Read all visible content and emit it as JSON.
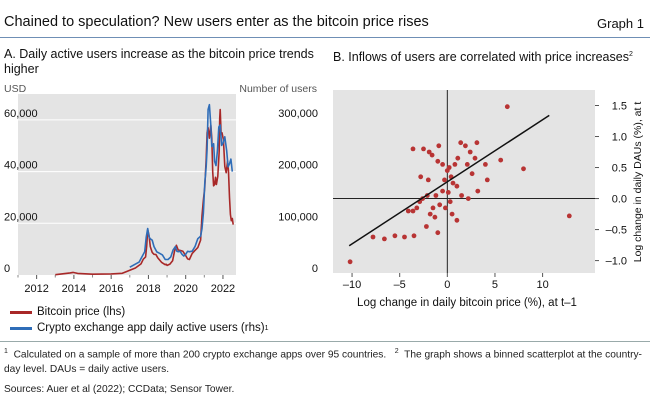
{
  "header": {
    "title": "Chained to speculation? New users enter as the bitcoin price rises",
    "graph_label": "Graph 1"
  },
  "panel_a": {
    "title": "A. Daily active users increase as the bitcoin price trends higher",
    "left_unit": "USD",
    "right_unit": "Number of users"
  },
  "panel_b": {
    "title": "B. Inflows of users are correlated with price increases",
    "title_sup": "2"
  },
  "legend": {
    "btc": "Bitcoin price (lhs)",
    "dau": "Crypto exchange app daily active users (rhs)",
    "dau_sup": "1"
  },
  "notes": {
    "n1_mark": "1",
    "n1": "Calculated on a sample of more than 200 crypto exchange apps over 95 countries.",
    "n2_mark": "2",
    "n2": "The graph shows a binned scatterplot at the country-day level. DAUs = daily active users.",
    "sources": "Sources: Auer et al (2022); CCData; Sensor Tower."
  },
  "colors": {
    "btc": "#a82828",
    "dau": "#2f6db8",
    "panel_bg": "#e4e4e4",
    "scatter": "#b83434",
    "fit": "#111111"
  },
  "chart_data": [
    {
      "type": "line",
      "title": "A. Daily active users increase as the bitcoin price trends higher",
      "x_ticks": [
        "2012",
        "2014",
        "2016",
        "2018",
        "2020",
        "2022"
      ],
      "x_range": [
        2011,
        2022.7
      ],
      "y_left": {
        "label": "USD",
        "ticks": [
          "0",
          "20,000",
          "40,000",
          "60,000"
        ],
        "range": [
          0,
          70000
        ]
      },
      "y_right": {
        "label": "Number of users",
        "ticks": [
          "0",
          "100,000",
          "200,000",
          "300,000"
        ],
        "range": [
          0,
          350000
        ]
      },
      "series": [
        {
          "name": "Bitcoin price (lhs)",
          "axis": "left",
          "x": [
            2013.0,
            2013.8,
            2013.95,
            2014.2,
            2015.0,
            2016.0,
            2016.6,
            2017.3,
            2017.6,
            2017.85,
            2017.96,
            2018.1,
            2018.3,
            2018.5,
            2018.9,
            2019.0,
            2019.3,
            2019.5,
            2019.7,
            2020.0,
            2020.2,
            2020.5,
            2020.8,
            2020.95,
            2021.1,
            2021.2,
            2021.35,
            2021.45,
            2021.55,
            2021.65,
            2021.8,
            2021.85,
            2021.95,
            2022.1,
            2022.25,
            2022.35,
            2022.45,
            2022.55
          ],
          "values": [
            100,
            800,
            1000,
            600,
            300,
            430,
            650,
            2700,
            4300,
            7000,
            17500,
            11000,
            8000,
            6700,
            4000,
            3700,
            5500,
            11500,
            9500,
            7500,
            6000,
            9500,
            13500,
            29000,
            45000,
            57000,
            58000,
            40000,
            35000,
            35000,
            48000,
            64000,
            55000,
            42000,
            44000,
            30000,
            21000,
            19500
          ]
        },
        {
          "name": "Crypto exchange app daily active users (rhs)",
          "axis": "right",
          "x": [
            2017.0,
            2017.5,
            2017.8,
            2017.96,
            2018.1,
            2018.3,
            2018.6,
            2018.9,
            2019.2,
            2019.45,
            2019.6,
            2019.8,
            2020.0,
            2020.2,
            2020.5,
            2020.8,
            2020.95,
            2021.1,
            2021.2,
            2021.35,
            2021.45,
            2021.55,
            2021.7,
            2021.85,
            2022.0,
            2022.2,
            2022.35,
            2022.5
          ],
          "values": [
            15000,
            25000,
            45000,
            90000,
            70000,
            55000,
            42000,
            30000,
            35000,
            55000,
            45000,
            40000,
            40000,
            45000,
            55000,
            75000,
            120000,
            210000,
            320000,
            290000,
            250000,
            220000,
            240000,
            290000,
            255000,
            240000,
            215000,
            200000
          ]
        }
      ]
    },
    {
      "type": "scatter",
      "title": "B. Inflows of users are correlated with price increases",
      "xlabel": "Log change in daily bitcoin price (%), at t–1",
      "ylabel": "Log change in daily DAUs (%), at t",
      "x_ticks": [
        "–10",
        "–5",
        "0",
        "5",
        "10"
      ],
      "y_ticks": [
        "–1.0",
        "–0.5",
        "0.0",
        "0.5",
        "1.0",
        "1.5"
      ],
      "xlim": [
        -12,
        15.5
      ],
      "ylim": [
        -1.2,
        1.75
      ],
      "fit_line": {
        "x": [
          -10.3,
          10.7
        ],
        "y": [
          -0.76,
          1.34
        ]
      },
      "points": [
        [
          -10.2,
          -1.02
        ],
        [
          -7.8,
          -0.62
        ],
        [
          -6.6,
          -0.65
        ],
        [
          -5.5,
          -0.6
        ],
        [
          -4.5,
          -0.62
        ],
        [
          -3.5,
          -0.6
        ],
        [
          -4.1,
          -0.2
        ],
        [
          -3.6,
          -0.2
        ],
        [
          -3.2,
          -0.15
        ],
        [
          -2.9,
          -0.05
        ],
        [
          -2.6,
          0.0
        ],
        [
          -2.2,
          -0.45
        ],
        [
          -1.8,
          -0.25
        ],
        [
          -1.5,
          -0.15
        ],
        [
          -1.3,
          -0.3
        ],
        [
          -1.0,
          -0.55
        ],
        [
          -2.1,
          0.05
        ],
        [
          -1.2,
          0.05
        ],
        [
          -0.8,
          -0.1
        ],
        [
          -0.5,
          0.12
        ],
        [
          -0.3,
          0.3
        ],
        [
          0.0,
          0.45
        ],
        [
          0.2,
          0.5
        ],
        [
          0.4,
          0.35
        ],
        [
          0.6,
          0.25
        ],
        [
          0.1,
          0.1
        ],
        [
          0.3,
          -0.05
        ],
        [
          -0.2,
          -0.15
        ],
        [
          0.5,
          -0.25
        ],
        [
          1.0,
          -0.35
        ],
        [
          -1.6,
          0.7
        ],
        [
          -1.0,
          0.6
        ],
        [
          -0.5,
          0.55
        ],
        [
          -2.0,
          0.3
        ],
        [
          -1.9,
          0.75
        ],
        [
          -2.5,
          0.8
        ],
        [
          0.8,
          0.55
        ],
        [
          1.1,
          0.65
        ],
        [
          1.4,
          0.9
        ],
        [
          1.9,
          0.85
        ],
        [
          2.4,
          0.75
        ],
        [
          2.1,
          0.55
        ],
        [
          2.9,
          0.65
        ],
        [
          1.5,
          0.05
        ],
        [
          2.2,
          0.0
        ],
        [
          3.2,
          0.12
        ],
        [
          3.1,
          0.9
        ],
        [
          4.0,
          0.55
        ],
        [
          4.2,
          0.3
        ],
        [
          5.6,
          0.62
        ],
        [
          6.3,
          1.48
        ],
        [
          8.0,
          0.48
        ],
        [
          12.8,
          -0.28
        ],
        [
          -2.8,
          0.35
        ],
        [
          -3.6,
          0.8
        ],
        [
          -0.9,
          0.85
        ],
        [
          1.0,
          0.2
        ],
        [
          2.6,
          0.4
        ]
      ]
    }
  ]
}
